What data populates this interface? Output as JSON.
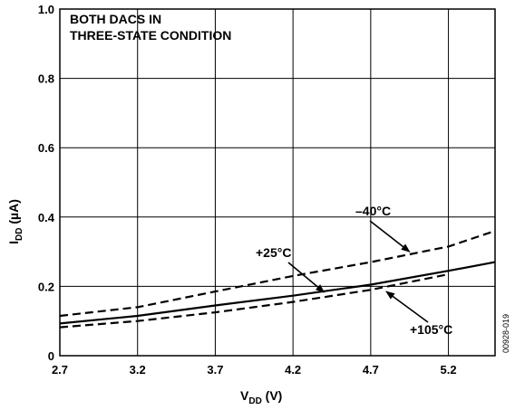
{
  "chart_data": {
    "type": "line",
    "title": "",
    "annotation_lines": [
      "BOTH DACS IN",
      "THREE-STATE CONDITION"
    ],
    "xlabel": {
      "main": "V",
      "sub": "DD",
      "unit": " (V)"
    },
    "ylabel": {
      "main": "I",
      "sub": "DD",
      "unit": " (µA)"
    },
    "xlim": [
      2.7,
      5.5
    ],
    "ylim": [
      0,
      1.0
    ],
    "x_ticks": [
      2.7,
      3.2,
      3.7,
      4.2,
      4.7,
      5.2
    ],
    "x_tick_labels": [
      "2.7",
      "3.2",
      "3.7",
      "4.2",
      "4.7",
      "5.2"
    ],
    "y_ticks": [
      0,
      0.2,
      0.4,
      0.6,
      0.8,
      1.0
    ],
    "y_tick_labels": [
      "0",
      "0.2",
      "0.4",
      "0.6",
      "0.8",
      "1.0"
    ],
    "grid": true,
    "legend": "none",
    "series": [
      {
        "name": "–40°C",
        "style": "dashed",
        "x": [
          2.7,
          3.2,
          3.7,
          4.2,
          4.7,
          5.2,
          5.5
        ],
        "y": [
          0.115,
          0.14,
          0.185,
          0.23,
          0.27,
          0.315,
          0.36
        ]
      },
      {
        "name": "+25°C",
        "style": "solid",
        "x": [
          2.7,
          3.2,
          3.7,
          4.2,
          4.7,
          5.2,
          5.5
        ],
        "y": [
          0.093,
          0.115,
          0.145,
          0.173,
          0.205,
          0.245,
          0.27
        ]
      },
      {
        "name": "+105°C",
        "style": "dashed",
        "x": [
          2.7,
          3.2,
          3.7,
          4.2,
          4.7,
          5.2
        ],
        "y": [
          0.082,
          0.1,
          0.125,
          0.155,
          0.19,
          0.235
        ]
      }
    ],
    "labels": [
      {
        "text": "–40°C",
        "arrow_to": [
          4.95,
          0.3
        ]
      },
      {
        "text": "+25°C",
        "arrow_to": [
          4.4,
          0.183
        ]
      },
      {
        "text": "+105°C",
        "arrow_to": [
          4.8,
          0.185
        ]
      }
    ],
    "figure_id": "00928-019"
  }
}
